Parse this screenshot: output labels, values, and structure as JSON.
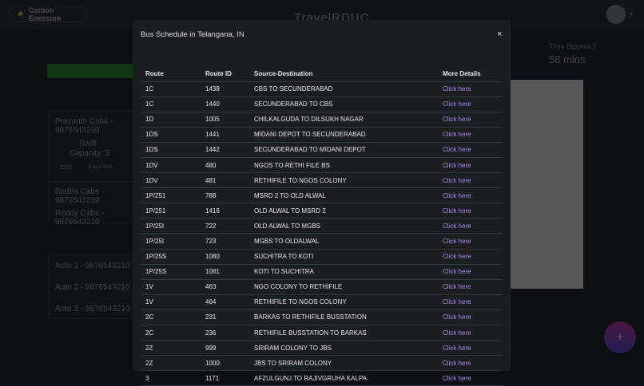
{
  "header": {
    "carbon_label": "Carbon Emission",
    "logo": "TravelRDUC"
  },
  "background": {
    "cab_cards": [
      {
        "title": "Prasanth Cabs - 9876543210",
        "car": "Swift",
        "capacity": "Capacity: 3",
        "co2": "CO2",
        "co2_value": "8 kg CO2/L"
      },
      {
        "title": "BlaBla Cabs - 9876543210"
      },
      {
        "title": "Reddy Cabs - 9876543210"
      }
    ],
    "autos": [
      "Auto 1 - 9876543210",
      "Auto 2 - 9876543210",
      "Auto 3 - 9876543210"
    ],
    "time_label": "Time (approx.)",
    "time_value": "56 mins",
    "fab": "+"
  },
  "modal": {
    "title": "Bus Schedule in Telangana, IN",
    "close": "×",
    "columns": [
      "Route",
      "Route ID",
      "Source-Destination",
      "More Details"
    ],
    "rows": [
      [
        "1C",
        "1438",
        "CBS TO SECUNDERABAD",
        "Click here"
      ],
      [
        "1C",
        "1440",
        "SECUNDERABAD TO CBS",
        "Click here"
      ],
      [
        "1D",
        "1005",
        "CHILKALGUDA TO DILSUKH NAGAR",
        "Click here"
      ],
      [
        "1DS",
        "1441",
        "MIDANI DEPOT TO SECUNDERABAD",
        "Click here"
      ],
      [
        "1DS",
        "1442",
        "SECUNDERABAD TO MIDANI DEPOT",
        "Click here"
      ],
      [
        "1DV",
        "480",
        "NGOS TO RETHI FILE BS",
        "Click here"
      ],
      [
        "1DV",
        "481",
        "RETHIFILE TO NGOS COLONY",
        "Click here"
      ],
      [
        "1P/251",
        "788",
        "MSRD 2 TO OLD ALWAL",
        "Click here"
      ],
      [
        "1P/251",
        "1416",
        "OLD ALWAL TO MSRD 2",
        "Click here"
      ],
      [
        "1P/25I",
        "722",
        "OLD ALWAL TO MGBS",
        "Click here"
      ],
      [
        "1P/25I",
        "723",
        "MGBS TO OLDALWAL",
        "Click here"
      ],
      [
        "1P/25S",
        "1080",
        "SUCHITRA TO KOTI",
        "Click here"
      ],
      [
        "1P/25S",
        "1081",
        "KOTI TO SUCHITRA",
        "Click here"
      ],
      [
        "1V",
        "463",
        "NGO COLONY TO RETHIFILE",
        "Click here"
      ],
      [
        "1V",
        "464",
        "RETHIFILE TO NGOS COLONY",
        "Click here"
      ],
      [
        "2C",
        "231",
        "BARKAS TO RETHIFILE BUSSTATION",
        "Click here"
      ],
      [
        "2C",
        "236",
        "RETHIFILE BUSSTATION TO BARKAS",
        "Click here"
      ],
      [
        "2Z",
        "999",
        "SRIRAM COLONY TO JBS",
        "Click here"
      ],
      [
        "2Z",
        "1000",
        "JBS TO SRIRAM COLONY",
        "Click here"
      ],
      [
        "3",
        "1171",
        "AFZULGUNJ TO RAJIVGRUHA KALPA",
        "Click here"
      ]
    ]
  }
}
